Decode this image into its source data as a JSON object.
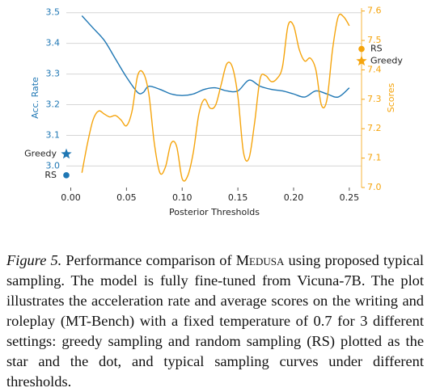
{
  "chart_data": {
    "type": "line",
    "xlabel": "Posterior Thresholds",
    "ylabel": "Acc. Rate",
    "y2label": "Scores",
    "xlim": [
      -0.004,
      0.261
    ],
    "ylim": [
      2.93,
      3.515
    ],
    "y2lim": [
      7.0,
      7.61
    ],
    "xticks": [
      {
        "value": 0,
        "label": "0.00"
      },
      0.05,
      {
        "value": 0.1,
        "label": "0.10"
      },
      0.15,
      {
        "value": 0.2,
        "label": "0.20"
      },
      0.25
    ],
    "yticks": [
      {
        "value": 3,
        "label": "3.0"
      },
      3.1,
      3.2,
      3.3,
      3.4,
      3.5
    ],
    "y2ticks": [
      {
        "value": 7,
        "label": "7.0"
      },
      7.1,
      7.2,
      7.3,
      7.4,
      7.5,
      7.6
    ],
    "grid": true,
    "series": [
      {
        "color": "#1f77b4",
        "axis": "y",
        "x": [
          0.01,
          0.02,
          0.03,
          0.04,
          0.05,
          0.06,
          0.065,
          0.07,
          0.08,
          0.09,
          0.1,
          0.11,
          0.12,
          0.13,
          0.14,
          0.15,
          0.16,
          0.17,
          0.18,
          0.19,
          0.2,
          0.21,
          0.22,
          0.23,
          0.24,
          0.25
        ],
        "values": [
          3.49,
          3.45,
          3.41,
          3.35,
          3.29,
          3.24,
          3.24,
          3.26,
          3.25,
          3.235,
          3.23,
          3.235,
          3.25,
          3.255,
          3.245,
          3.245,
          3.28,
          3.26,
          3.25,
          3.245,
          3.235,
          3.225,
          3.245,
          3.235,
          3.225,
          3.255
        ]
      },
      {
        "color": "#f5a40c",
        "axis": "y2",
        "x": [
          0.01,
          0.015,
          0.02,
          0.025,
          0.03,
          0.035,
          0.04,
          0.045,
          0.05,
          0.055,
          0.06,
          0.065,
          0.07,
          0.075,
          0.08,
          0.085,
          0.09,
          0.095,
          0.1,
          0.105,
          0.11,
          0.115,
          0.12,
          0.125,
          0.13,
          0.135,
          0.14,
          0.145,
          0.15,
          0.155,
          0.16,
          0.165,
          0.17,
          0.175,
          0.18,
          0.185,
          0.19,
          0.195,
          0.2,
          0.205,
          0.21,
          0.215,
          0.22,
          0.225,
          0.23,
          0.235,
          0.24,
          0.245,
          0.25
        ],
        "values": [
          7.05,
          7.15,
          7.23,
          7.26,
          7.25,
          7.24,
          7.245,
          7.23,
          7.21,
          7.26,
          7.38,
          7.39,
          7.32,
          7.15,
          7.05,
          7.07,
          7.15,
          7.14,
          7.03,
          7.04,
          7.12,
          7.25,
          7.3,
          7.27,
          7.28,
          7.35,
          7.42,
          7.41,
          7.31,
          7.12,
          7.1,
          7.22,
          7.37,
          7.38,
          7.36,
          7.37,
          7.41,
          7.55,
          7.55,
          7.47,
          7.43,
          7.44,
          7.4,
          7.28,
          7.3,
          7.47,
          7.58,
          7.58,
          7.55
        ]
      }
    ],
    "markers": [
      {
        "name": "Greedy",
        "marker": "star",
        "color": "#1f77b4",
        "axis": "y",
        "x": -0.004,
        "value": 3.039
      },
      {
        "name": "RS",
        "marker": "dot",
        "color": "#1f77b4",
        "axis": "y",
        "x": -0.004,
        "value": 2.97
      },
      {
        "name": "RS",
        "marker": "dot",
        "color": "#f5a40c",
        "axis": "y2",
        "x": 0.261,
        "value": 7.471
      },
      {
        "name": "Greedy",
        "marker": "star",
        "color": "#f5a40c",
        "axis": "y2",
        "x": 0.261,
        "value": 7.43
      }
    ]
  },
  "caption": {
    "label": "Figure 5.",
    "before": "Performance comparison of",
    "name": "Medusa",
    "after": "using proposed typical sampling. The model is fully fine-tuned from Vicuna-7B. The plot illustrates the acceleration rate and average scores on the writing and roleplay (MT-Bench) with a fixed temperature of 0.7 for 3 different settings: greedy sampling and random sampling (RS) plotted as the star and the dot, and typical sampling curves under different thresholds."
  }
}
